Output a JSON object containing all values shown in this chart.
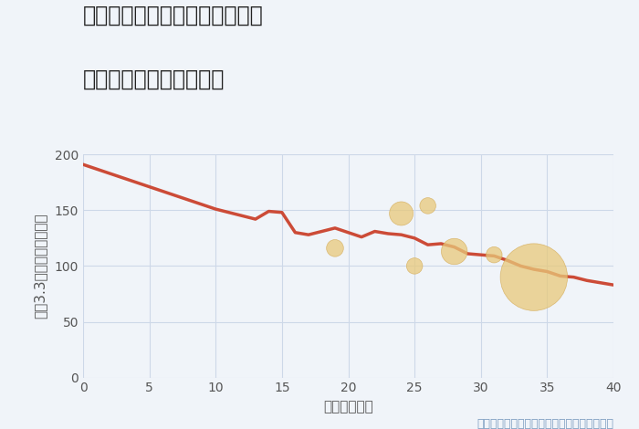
{
  "title_line1": "愛知県名古屋市千種区堀割町の",
  "title_line2": "築年数別中古戸建て価格",
  "xlabel": "築年数（年）",
  "ylabel": "坪（3.3㎡）単価（万円）",
  "annotation": "円の大きさは、取引のあった物件面積を示す",
  "xlim": [
    0,
    40
  ],
  "ylim": [
    0,
    200
  ],
  "xticks": [
    0,
    5,
    10,
    15,
    20,
    25,
    30,
    35,
    40
  ],
  "yticks": [
    0,
    50,
    100,
    150,
    200
  ],
  "background_color": "#f0f4f9",
  "plot_bg_color": "#f0f4f9",
  "line_color": "#cc4b37",
  "line_width": 2.5,
  "line_x": [
    0,
    1,
    2,
    3,
    4,
    5,
    6,
    7,
    8,
    9,
    10,
    11,
    12,
    13,
    14,
    15,
    16,
    17,
    18,
    19,
    20,
    21,
    22,
    23,
    24,
    25,
    26,
    27,
    28,
    29,
    30,
    31,
    32,
    33,
    34,
    35,
    36,
    37,
    38,
    39,
    40
  ],
  "line_y": [
    191,
    187,
    183,
    179,
    175,
    171,
    167,
    163,
    159,
    155,
    151,
    148,
    145,
    142,
    149,
    148,
    130,
    128,
    131,
    134,
    130,
    126,
    131,
    129,
    128,
    125,
    119,
    120,
    117,
    111,
    110,
    109,
    105,
    100,
    97,
    95,
    91,
    90,
    87,
    85,
    83
  ],
  "scatter_x": [
    19,
    24,
    25,
    26,
    28,
    31,
    34
  ],
  "scatter_y": [
    116,
    147,
    100,
    154,
    113,
    110,
    90
  ],
  "scatter_sizes": [
    180,
    350,
    160,
    160,
    420,
    160,
    2800
  ],
  "scatter_color": "#e8c97a",
  "scatter_alpha": 0.75,
  "scatter_edge_color": "#d4aa55",
  "scatter_edge_width": 0.5,
  "grid_color": "#cdd8e8",
  "title_color": "#222222",
  "title_fontsize": 17,
  "axis_label_color": "#555555",
  "axis_label_fontsize": 11,
  "tick_fontsize": 10,
  "annotation_color": "#7a9bbf",
  "annotation_fontsize": 9
}
